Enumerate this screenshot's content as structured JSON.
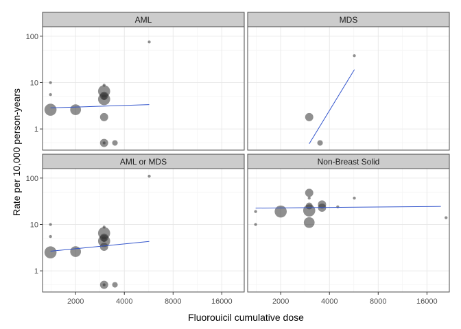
{
  "chart_data": {
    "type": "scatter",
    "xlabel": "Fluorouicil cumulative dose",
    "ylabel": "Rate per 10,000 person-years",
    "x_scale": "log2",
    "y_scale": "log10",
    "xlim": [
      1250,
      22000
    ],
    "ylim": [
      0.35,
      160
    ],
    "x_ticks": [
      2000,
      4000,
      8000,
      16000
    ],
    "x_tick_labels": [
      "2000",
      "4000",
      "8000",
      "16000"
    ],
    "y_ticks": [
      1,
      10,
      100
    ],
    "y_tick_labels": [
      "1",
      "10",
      "100"
    ],
    "colors": {
      "point": "#333333",
      "line": "#3355cc",
      "strip": "#cccccc",
      "grid": "#e6e6e6",
      "border": "#4d4d4d"
    },
    "panels": [
      {
        "title": "AML",
        "points": [
          {
            "x": 1400,
            "y": 10,
            "size": 1
          },
          {
            "x": 1400,
            "y": 5.5,
            "size": 1
          },
          {
            "x": 1400,
            "y": 2.6,
            "size": 8
          },
          {
            "x": 2000,
            "y": 2.6,
            "size": 7
          },
          {
            "x": 3000,
            "y": 8.8,
            "size": 1
          },
          {
            "x": 3000,
            "y": 6.5,
            "size": 8
          },
          {
            "x": 3000,
            "y": 5.2,
            "size": 5
          },
          {
            "x": 3000,
            "y": 4.8,
            "size": 3
          },
          {
            "x": 3000,
            "y": 4.4,
            "size": 8
          },
          {
            "x": 3000,
            "y": 1.8,
            "size": 5
          },
          {
            "x": 3000,
            "y": 0.5,
            "size": 5
          },
          {
            "x": 3000,
            "y": 0.5,
            "size": 1
          },
          {
            "x": 3500,
            "y": 0.5,
            "size": 3
          },
          {
            "x": 5700,
            "y": 75,
            "size": 1
          }
        ],
        "fit": {
          "x": [
            1400,
            5700
          ],
          "y": [
            2.85,
            3.35
          ]
        }
      },
      {
        "title": "MDS",
        "points": [
          {
            "x": 3000,
            "y": 1.8,
            "size": 5
          },
          {
            "x": 3500,
            "y": 0.5,
            "size": 3
          },
          {
            "x": 5700,
            "y": 38,
            "size": 1
          }
        ],
        "fit": {
          "x": [
            3000,
            5700
          ],
          "y": [
            0.48,
            19
          ]
        }
      },
      {
        "title": "AML or MDS",
        "points": [
          {
            "x": 1400,
            "y": 10,
            "size": 1
          },
          {
            "x": 1400,
            "y": 5.5,
            "size": 1
          },
          {
            "x": 1400,
            "y": 2.5,
            "size": 8
          },
          {
            "x": 2000,
            "y": 2.6,
            "size": 7
          },
          {
            "x": 3000,
            "y": 8.8,
            "size": 1
          },
          {
            "x": 3000,
            "y": 6.5,
            "size": 8
          },
          {
            "x": 3000,
            "y": 5.2,
            "size": 5
          },
          {
            "x": 3000,
            "y": 4.8,
            "size": 3
          },
          {
            "x": 3000,
            "y": 4.4,
            "size": 8
          },
          {
            "x": 3000,
            "y": 3.3,
            "size": 5
          },
          {
            "x": 3000,
            "y": 0.5,
            "size": 5
          },
          {
            "x": 3000,
            "y": 0.5,
            "size": 1
          },
          {
            "x": 3500,
            "y": 0.5,
            "size": 3
          },
          {
            "x": 5700,
            "y": 110,
            "size": 1
          }
        ],
        "fit": {
          "x": [
            1400,
            5700
          ],
          "y": [
            2.65,
            4.3
          ]
        }
      },
      {
        "title": "Non-Breast Solid",
        "points": [
          {
            "x": 1400,
            "y": 19,
            "size": 1
          },
          {
            "x": 1400,
            "y": 10,
            "size": 1
          },
          {
            "x": 2000,
            "y": 19,
            "size": 8
          },
          {
            "x": 3000,
            "y": 48,
            "size": 5
          },
          {
            "x": 3000,
            "y": 37,
            "size": 1
          },
          {
            "x": 3000,
            "y": 25,
            "size": 4
          },
          {
            "x": 3000,
            "y": 20,
            "size": 8
          },
          {
            "x": 3000,
            "y": 11,
            "size": 7
          },
          {
            "x": 3600,
            "y": 27,
            "size": 5
          },
          {
            "x": 3600,
            "y": 23,
            "size": 5
          },
          {
            "x": 4500,
            "y": 24,
            "size": 1
          },
          {
            "x": 5700,
            "y": 37,
            "size": 1
          },
          {
            "x": 21000,
            "y": 14,
            "size": 1
          }
        ],
        "fit": {
          "x": [
            1400,
            19500
          ],
          "y": [
            22.5,
            24.5
          ]
        }
      }
    ]
  }
}
